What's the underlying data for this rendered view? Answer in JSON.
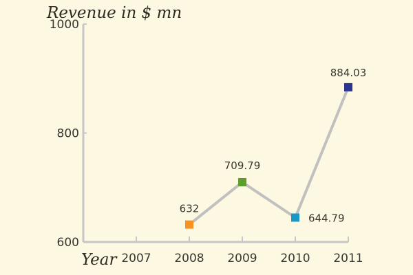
{
  "chart_data": {
    "type": "line",
    "title": "",
    "ylabel": "Revenue in $ mn",
    "xlabel": "Year",
    "ylim": [
      600,
      1000
    ],
    "y_ticks": [
      {
        "value": 600,
        "label": "600"
      },
      {
        "value": 800,
        "label": "800"
      },
      {
        "value": 1000,
        "label": "1000"
      }
    ],
    "categories": [
      "2007",
      "2008",
      "2009",
      "2010",
      "2011"
    ],
    "series": [
      {
        "color": "#c0c0c0",
        "points": [
          {
            "year": "2008",
            "value": 632,
            "label": "632",
            "color": "#f7931e"
          },
          {
            "year": "2009",
            "value": 709.79,
            "label": "709.79",
            "color": "#5e9e2f"
          },
          {
            "year": "2010",
            "value": 644.79,
            "label": "644.79",
            "color": "#1b97c5"
          },
          {
            "year": "2011",
            "value": 884.03,
            "label": "884.03",
            "color": "#2c3590"
          }
        ]
      }
    ],
    "grid": false,
    "axis_color": "#c6c6c6",
    "background": "#fdf8e1"
  }
}
